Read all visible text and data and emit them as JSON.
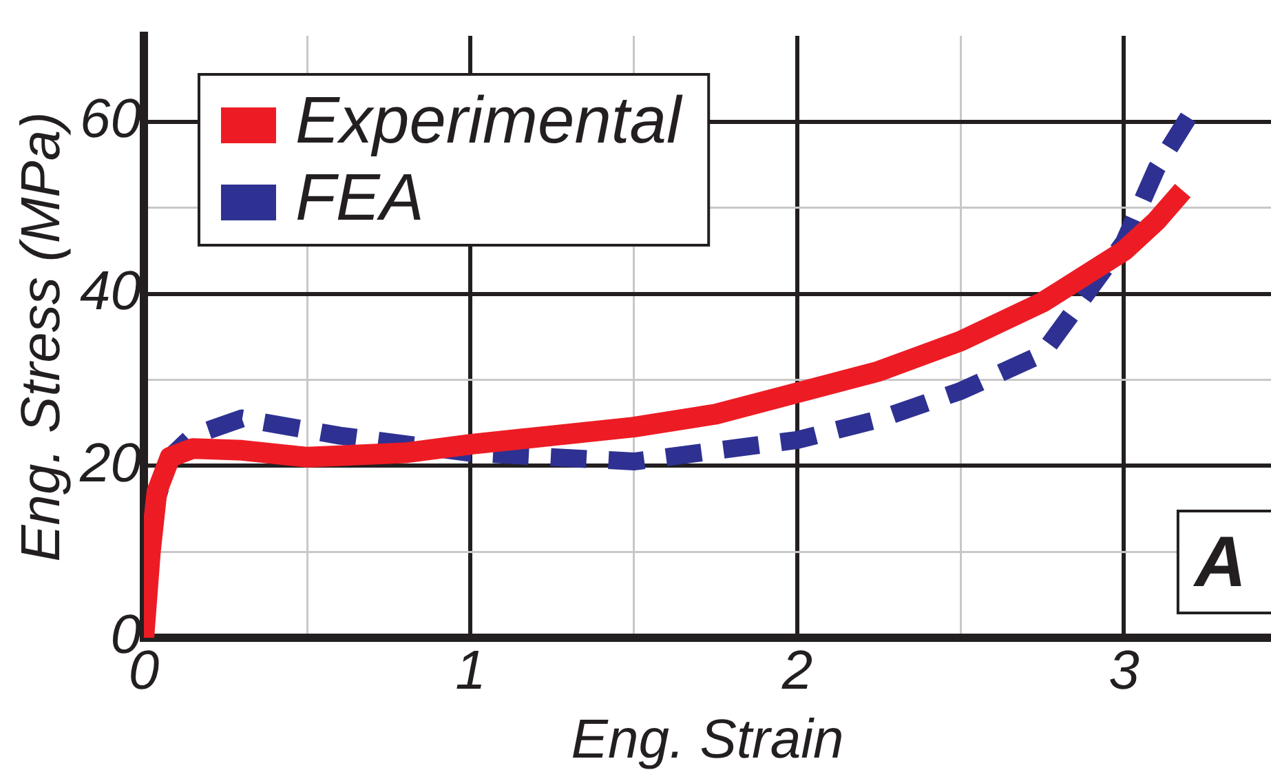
{
  "chart_data": {
    "type": "line",
    "xlabel": "Eng. Strain",
    "ylabel": "Eng. Stress (MPa)",
    "xlim": [
      0,
      3.45
    ],
    "xticks": [
      0,
      {
        "value": 0.5,
        "label": null
      },
      1,
      {
        "value": 1.5,
        "label": null
      },
      2,
      {
        "value": 2.5,
        "label": null
      },
      3
    ],
    "ylim": [
      0,
      70
    ],
    "yticks": [
      0,
      {
        "value": 10,
        "label": null
      },
      20,
      {
        "value": 30,
        "label": null
      },
      40,
      {
        "value": 50,
        "label": null
      },
      60
    ],
    "grid": true,
    "legend": "top left",
    "annotations": [
      "A"
    ],
    "series": [
      {
        "name": "Experimental",
        "color": "#ed1c24",
        "line_style": "solid",
        "x": [
          0,
          0.02,
          0.04,
          0.08,
          0.15,
          0.3,
          0.5,
          0.8,
          1,
          1.25,
          1.5,
          1.75,
          2,
          2.25,
          2.5,
          2.75,
          3,
          3.1,
          3.18
        ],
        "values": [
          0,
          10,
          17,
          21,
          22,
          21.8,
          21,
          21.5,
          22.5,
          23.5,
          24.5,
          26,
          28.5,
          31,
          34.5,
          39,
          45,
          48.5,
          52
        ]
      },
      {
        "name": "FEA",
        "color": "#2e3192",
        "line_style": "dashed",
        "x": [
          0,
          0.03,
          0.08,
          0.15,
          0.3,
          0.6,
          1,
          1.5,
          2,
          2.25,
          2.5,
          2.75,
          3,
          3.1,
          3.2
        ],
        "values": [
          0,
          15,
          21,
          23.5,
          25.5,
          23.5,
          21.5,
          20.5,
          23,
          25.4,
          28.7,
          33,
          46,
          54.6,
          60.7
        ]
      }
    ]
  }
}
